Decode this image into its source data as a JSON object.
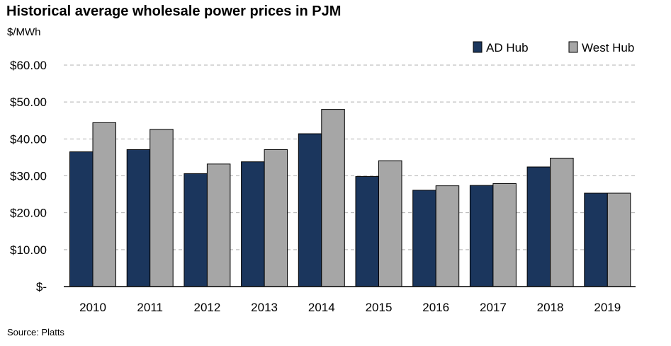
{
  "chart_data": {
    "type": "bar",
    "title": "Historical average wholesale power prices in PJM",
    "ylabel": "$/MWh",
    "source": "Source: Platts",
    "categories": [
      "2010",
      "2011",
      "2012",
      "2013",
      "2014",
      "2015",
      "2016",
      "2017",
      "2018",
      "2019"
    ],
    "series": [
      {
        "name": "AD Hub",
        "values": [
          36.5,
          37.1,
          30.6,
          33.8,
          41.4,
          29.8,
          26.1,
          27.4,
          32.4,
          25.3
        ]
      },
      {
        "name": "West Hub",
        "values": [
          44.4,
          42.6,
          33.2,
          37.1,
          48.0,
          34.1,
          27.3,
          27.9,
          34.8,
          25.3
        ]
      }
    ],
    "ylim": [
      0,
      60
    ],
    "yticks": [
      0,
      10,
      20,
      30,
      40,
      50,
      60
    ],
    "ytick_labels": [
      "$-",
      "$10.00",
      "$20.00",
      "$30.00",
      "$40.00",
      "$50.00",
      "$60.00"
    ],
    "grid": "horizontal-dashed",
    "legend": "top-right",
    "colors": {
      "AD Hub": "#1b365d",
      "West Hub": "#a6a6a6"
    }
  }
}
